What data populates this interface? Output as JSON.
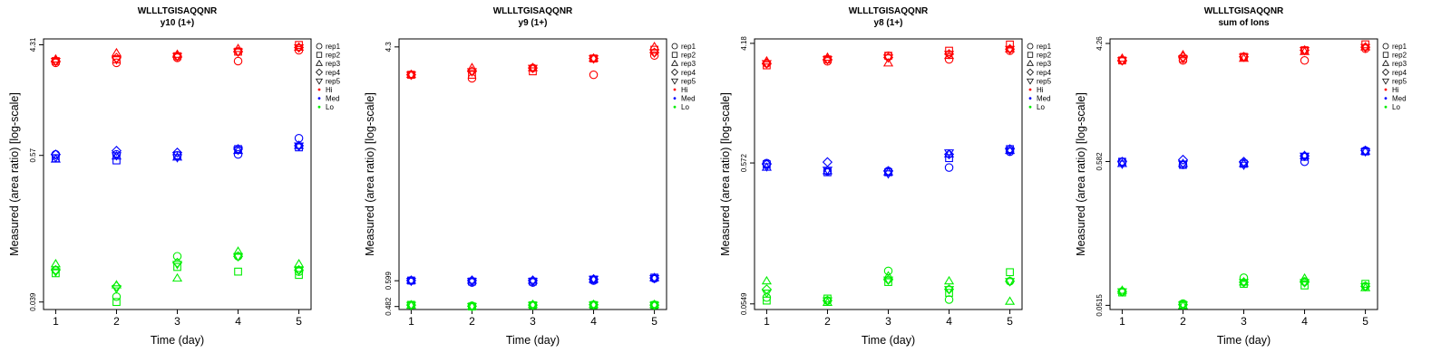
{
  "legend": [
    {
      "label": "rep1",
      "shape": "circle"
    },
    {
      "label": "rep2",
      "shape": "square"
    },
    {
      "label": "rep3",
      "shape": "triangle-up"
    },
    {
      "label": "rep4",
      "shape": "diamond"
    },
    {
      "label": "rep5",
      "shape": "triangle-down"
    },
    {
      "label": "Hi",
      "dot_color": "#ff0000"
    },
    {
      "label": "Med",
      "dot_color": "#0000ff"
    },
    {
      "label": "Lo",
      "dot_color": "#00ee00"
    }
  ],
  "colors": {
    "Hi": "#ff0000",
    "Med": "#0000ff",
    "Lo": "#00ee00"
  },
  "chart_data": [
    {
      "type": "scatter",
      "title": "WLLLTGISAQQNR",
      "subtitle": "y10 (1+)",
      "xlabel": "Time (day)",
      "ylabel": "Measured (area ratio) [log-scale]",
      "y_scale": "log",
      "x_ticks": [
        "1",
        "2",
        "3",
        "4",
        "5"
      ],
      "y_ticks": [
        "0.039",
        "0.57",
        "4.31"
      ],
      "xlim": [
        0.8,
        5.2
      ],
      "ylim": [
        0.034,
        4.8
      ],
      "grid": false,
      "legend_position": "right",
      "series": [
        {
          "name": "Hi",
          "color": "#ff0000",
          "reps": {
            "rep1": [
              3.1,
              3.1,
              3.4,
              3.2,
              3.9
            ],
            "rep2": [
              3.2,
              3.3,
              3.5,
              3.8,
              4.3
            ],
            "rep3": [
              3.3,
              3.7,
              3.6,
              4.0,
              4.1
            ],
            "rep4": [
              3.2,
              3.4,
              3.5,
              3.8,
              4.1
            ],
            "rep5": [
              3.2,
              3.3,
              3.5,
              3.8,
              4.1
            ]
          }
        },
        {
          "name": "Med",
          "color": "#0000ff",
          "reps": {
            "rep1": [
              0.58,
              0.58,
              0.57,
              0.58,
              0.78
            ],
            "rep2": [
              0.54,
              0.52,
              0.57,
              0.64,
              0.66
            ],
            "rep3": [
              0.53,
              0.56,
              0.55,
              0.62,
              0.68
            ],
            "rep4": [
              0.58,
              0.62,
              0.6,
              0.64,
              0.68
            ],
            "rep5": [
              0.55,
              0.57,
              0.55,
              0.63,
              0.68
            ]
          }
        },
        {
          "name": "Lo",
          "color": "#00ee00",
          "reps": {
            "rep1": [
              0.07,
              0.043,
              0.09,
              0.09,
              0.068
            ],
            "rep2": [
              0.066,
              0.039,
              0.074,
              0.068,
              0.064
            ],
            "rep3": [
              0.078,
              0.053,
              0.06,
              0.098,
              0.078
            ],
            "rep4": [
              0.07,
              0.052,
              0.08,
              0.09,
              0.07
            ],
            "rep5": [
              0.068,
              0.05,
              0.078,
              0.09,
              0.07
            ]
          }
        }
      ]
    },
    {
      "type": "scatter",
      "title": "WLLLTGISAQQNR",
      "subtitle": "y9 (1+)",
      "xlabel": "Time (day)",
      "ylabel": "Measured (area ratio) [log-scale]",
      "y_scale": "log",
      "x_ticks": [
        "1",
        "2",
        "3",
        "4",
        "5"
      ],
      "y_ticks": [
        "0.482",
        "0.599",
        "4.3"
      ],
      "xlim": [
        0.8,
        5.2
      ],
      "ylim": [
        0.47,
        4.6
      ],
      "grid": false,
      "legend_position": "right",
      "series": [
        {
          "name": "Hi",
          "color": "#ff0000",
          "reps": {
            "rep1": [
              3.4,
              3.3,
              3.6,
              3.4,
              4.0
            ],
            "rep2": [
              3.4,
              3.4,
              3.5,
              3.9,
              4.2
            ],
            "rep3": [
              3.4,
              3.6,
              3.6,
              3.9,
              4.3
            ],
            "rep4": [
              3.4,
              3.5,
              3.6,
              3.9,
              4.1
            ],
            "rep5": [
              3.4,
              3.5,
              3.6,
              3.9,
              4.1
            ]
          }
        },
        {
          "name": "Med",
          "color": "#0000ff",
          "reps": {
            "rep1": [
              0.6,
              0.59,
              0.59,
              0.6,
              0.61
            ],
            "rep2": [
              0.6,
              0.595,
              0.595,
              0.605,
              0.615
            ],
            "rep3": [
              0.6,
              0.6,
              0.6,
              0.605,
              0.613
            ],
            "rep4": [
              0.6,
              0.6,
              0.6,
              0.607,
              0.613
            ],
            "rep5": [
              0.598,
              0.597,
              0.597,
              0.608,
              0.612
            ]
          }
        },
        {
          "name": "Lo",
          "color": "#00ee00",
          "reps": {
            "rep1": [
              0.488,
              0.485,
              0.488,
              0.489,
              0.489
            ],
            "rep2": [
              0.489,
              0.482,
              0.487,
              0.488,
              0.488
            ],
            "rep3": [
              0.486,
              0.482,
              0.489,
              0.489,
              0.489
            ],
            "rep4": [
              0.488,
              0.483,
              0.488,
              0.489,
              0.488
            ],
            "rep5": [
              0.488,
              0.483,
              0.488,
              0.489,
              0.488
            ]
          }
        }
      ]
    },
    {
      "type": "scatter",
      "title": "WLLLTGISAQQNR",
      "subtitle": "y8 (1+)",
      "xlabel": "Time (day)",
      "ylabel": "Measured (area ratio) [log-scale]",
      "y_scale": "log",
      "x_ticks": [
        "1",
        "2",
        "3",
        "4",
        "5"
      ],
      "y_ticks": [
        "0.0549",
        "0.572",
        "4.18"
      ],
      "xlim": [
        0.8,
        5.2
      ],
      "ylim": [
        0.05,
        4.5
      ],
      "grid": false,
      "legend_position": "right",
      "series": [
        {
          "name": "Hi",
          "color": "#ff0000",
          "reps": {
            "rep1": [
              3.0,
              3.1,
              3.4,
              3.2,
              3.7
            ],
            "rep2": [
              2.9,
              3.2,
              3.4,
              3.7,
              4.1
            ],
            "rep3": [
              3.1,
              3.3,
              3.0,
              3.4,
              3.8
            ],
            "rep4": [
              3.0,
              3.2,
              3.3,
              3.5,
              3.8
            ],
            "rep5": [
              3.0,
              3.2,
              3.3,
              3.5,
              3.8
            ]
          }
        },
        {
          "name": "Med",
          "color": "#0000ff",
          "reps": {
            "rep1": [
              0.57,
              0.5,
              0.5,
              0.53,
              0.69
            ],
            "rep2": [
              0.56,
              0.49,
              0.49,
              0.62,
              0.72
            ],
            "rep3": [
              0.53,
              0.5,
              0.49,
              0.66,
              0.7
            ],
            "rep4": [
              0.56,
              0.58,
              0.5,
              0.66,
              0.72
            ],
            "rep5": [
              0.54,
              0.51,
              0.48,
              0.68,
              0.7
            ]
          }
        },
        {
          "name": "Lo",
          "color": "#00ee00",
          "reps": {
            "rep1": [
              0.061,
              0.058,
              0.095,
              0.059,
              0.08
            ],
            "rep2": [
              0.058,
              0.06,
              0.079,
              0.066,
              0.093
            ],
            "rep3": [
              0.08,
              0.056,
              0.087,
              0.08,
              0.057
            ],
            "rep4": [
              0.07,
              0.058,
              0.082,
              0.07,
              0.08
            ],
            "rep5": [
              0.066,
              0.058,
              0.082,
              0.07,
              0.08
            ]
          }
        }
      ]
    },
    {
      "type": "scatter",
      "title": "WLLLTGISAQQNR",
      "subtitle": "sum of Ions",
      "xlabel": "Time (day)",
      "ylabel": "Measured (area ratio) [log-scale]",
      "y_scale": "log",
      "x_ticks": [
        "1",
        "2",
        "3",
        "4",
        "5"
      ],
      "y_ticks": [
        "0.0515",
        "0.582",
        "4.26"
      ],
      "xlim": [
        0.8,
        5.2
      ],
      "ylim": [
        0.048,
        4.6
      ],
      "grid": false,
      "legend_position": "right",
      "series": [
        {
          "name": "Hi",
          "color": "#ff0000",
          "reps": {
            "rep1": [
              3.2,
              3.2,
              3.4,
              3.2,
              3.9
            ],
            "rep2": [
              3.2,
              3.3,
              3.4,
              3.8,
              4.2
            ],
            "rep3": [
              3.3,
              3.5,
              3.3,
              3.7,
              4.0
            ],
            "rep4": [
              3.2,
              3.4,
              3.4,
              3.8,
              4.0
            ],
            "rep5": [
              3.2,
              3.3,
              3.4,
              3.8,
              4.0
            ]
          }
        },
        {
          "name": "Med",
          "color": "#0000ff",
          "reps": {
            "rep1": [
              0.58,
              0.55,
              0.57,
              0.58,
              0.7
            ],
            "rep2": [
              0.58,
              0.55,
              0.56,
              0.63,
              0.69
            ],
            "rep3": [
              0.56,
              0.56,
              0.56,
              0.64,
              0.69
            ],
            "rep4": [
              0.58,
              0.6,
              0.58,
              0.64,
              0.7
            ],
            "rep5": [
              0.56,
              0.56,
              0.55,
              0.64,
              0.69
            ]
          }
        },
        {
          "name": "Lo",
          "color": "#00ee00",
          "reps": {
            "rep1": [
              0.065,
              0.053,
              0.082,
              0.077,
              0.071
            ],
            "rep2": [
              0.064,
              0.052,
              0.074,
              0.072,
              0.074
            ],
            "rep3": [
              0.066,
              0.051,
              0.076,
              0.081,
              0.069
            ],
            "rep4": [
              0.065,
              0.052,
              0.076,
              0.076,
              0.071
            ],
            "rep5": [
              0.065,
              0.052,
              0.076,
              0.076,
              0.071
            ]
          }
        }
      ]
    }
  ]
}
